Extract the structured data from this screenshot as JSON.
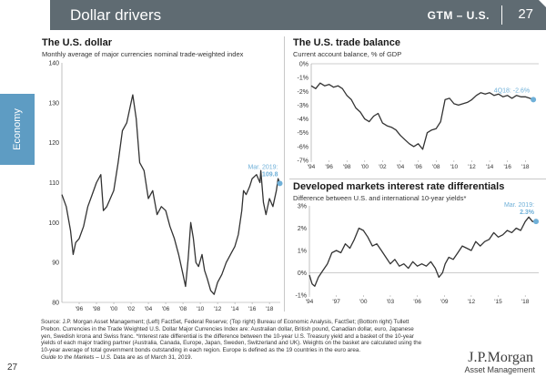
{
  "header": {
    "title": "Dollar drivers",
    "series": "GTM – U.S.",
    "page": "27"
  },
  "sidebar": {
    "tab": "Economy"
  },
  "charts": {
    "dollar": {
      "title": "The U.S. dollar",
      "subtitle": "Monthly average of major currencies nominal trade-weighted index",
      "callout_date": "Mar. 2019:",
      "callout_value": "109.8"
    },
    "trade": {
      "title": "The U.S. trade balance",
      "subtitle": "Current account balance, % of GDP",
      "callout": "4Q18: -2.6%"
    },
    "rates": {
      "title": "Developed markets interest rate differentials",
      "subtitle": "Difference between U.S. and international 10-year yields*",
      "callout_date": "Mar. 2019:",
      "callout_value": "2.3%"
    }
  },
  "source": {
    "text": "Source: J.P. Morgan Asset Management; (Left) FactSet, Federal Reserve; (Top right) Bureau of Economic Analysis, FactSet; (Bottom right) Tullett Prebon. Currencies in the Trade Weighted U.S. Dollar Major Currencies Index are: Australian dollar, British pound, Canadian dollar, euro, Japanese yen, Swedish krona and Swiss franc. *Interest rate differential is the difference between the 10-year U.S. Treasury yield and a basket of the 10-year yields of each major trading partner (Australia, Canada, Europe, Japan, Sweden, Switzerland and UK). Weights on the basket are calculated using the 10-year average of total government bonds outstanding in each region. Europe is defined as the 19 countries in the euro area.",
    "guide_label": "Guide to the Markets – U.S.",
    "guide_suffix": "Data are as of March 31, 2019."
  },
  "footer": {
    "page_number": "27",
    "logo": "J.P.Morgan",
    "logo_sub": "Asset Management"
  },
  "colors": {
    "header_bg": "#5f6b72",
    "sidetab": "#5e9cc3",
    "line": "#333333",
    "accent": "#6fb0d8"
  },
  "chart_data": [
    {
      "type": "line",
      "title": "The U.S. dollar",
      "subtitle": "Monthly average of major currencies nominal trade-weighted index",
      "ylim": [
        80,
        140
      ],
      "yticks": [
        80,
        90,
        100,
        110,
        120,
        130,
        140
      ],
      "xlim": [
        1994.0,
        2019.25
      ],
      "xtick_labels": [
        "'96",
        "'98",
        "'00",
        "'02",
        "'04",
        "'06",
        "'08",
        "'10",
        "'12",
        "'14",
        "'16",
        "'18"
      ],
      "xtick_values": [
        1996,
        1998,
        2000,
        2002,
        2004,
        2006,
        2008,
        2010,
        2012,
        2014,
        2016,
        2018
      ],
      "x": [
        1994.0,
        1994.5,
        1995.0,
        1995.3,
        1995.6,
        1996.0,
        1996.5,
        1997.0,
        1997.5,
        1998.0,
        1998.5,
        1998.8,
        1999.2,
        1999.6,
        2000.0,
        2000.5,
        2001.0,
        2001.5,
        2002.0,
        2002.2,
        2002.6,
        2003.0,
        2003.5,
        2004.0,
        2004.5,
        2005.0,
        2005.5,
        2006.0,
        2006.5,
        2007.0,
        2007.5,
        2008.0,
        2008.3,
        2008.6,
        2008.9,
        2009.2,
        2009.5,
        2009.8,
        2010.2,
        2010.5,
        2010.8,
        2011.2,
        2011.6,
        2012.0,
        2012.5,
        2013.0,
        2013.5,
        2014.0,
        2014.4,
        2014.8,
        2015.0,
        2015.3,
        2015.7,
        2016.0,
        2016.5,
        2016.9,
        2017.0,
        2017.3,
        2017.6,
        2018.0,
        2018.4,
        2018.8,
        2019.0,
        2019.2
      ],
      "y": [
        107,
        104,
        98,
        92,
        95,
        96,
        99,
        104,
        107,
        110,
        112,
        103,
        104,
        106,
        108,
        115,
        123,
        125,
        130,
        132,
        126,
        115,
        113,
        106,
        108,
        102,
        104,
        103,
        99,
        96,
        92,
        87,
        84,
        91,
        100,
        96,
        90,
        89,
        92,
        88,
        86,
        83,
        82,
        85,
        87,
        90,
        92,
        94,
        97,
        103,
        108,
        107,
        109,
        111,
        112,
        110,
        113,
        105,
        102,
        106,
        104,
        108,
        111,
        109.8
      ],
      "callout": {
        "label": "Mar. 2019:",
        "value": "109.8",
        "x": 2019.2,
        "y": 109.8
      }
    },
    {
      "type": "line",
      "title": "The U.S. trade balance",
      "subtitle": "Current account balance, % of GDP",
      "ylim": [
        0,
        -7
      ],
      "yticks": [
        0,
        -1,
        -2,
        -3,
        -4,
        -5,
        -6,
        -7
      ],
      "ytick_labels": [
        "0%",
        "-1%",
        "-2%",
        "-3%",
        "-4%",
        "-5%",
        "-6%",
        "-7%"
      ],
      "inverted": true,
      "xlim": [
        1994.0,
        2019.5
      ],
      "xtick_labels": [
        "'94",
        "'96",
        "'98",
        "'00",
        "'02",
        "'04",
        "'06",
        "'08",
        "'10",
        "'12",
        "'14",
        "'16",
        "'18"
      ],
      "xtick_values": [
        1994,
        1996,
        1998,
        2000,
        2002,
        2004,
        2006,
        2008,
        2010,
        2012,
        2014,
        2016,
        2018
      ],
      "x": [
        1994.0,
        1994.5,
        1995.0,
        1995.5,
        1996.0,
        1996.5,
        1997.0,
        1997.5,
        1998.0,
        1998.5,
        1999.0,
        1999.5,
        2000.0,
        2000.5,
        2001.0,
        2001.5,
        2002.0,
        2002.5,
        2003.0,
        2003.5,
        2004.0,
        2004.5,
        2005.0,
        2005.5,
        2006.0,
        2006.5,
        2007.0,
        2007.5,
        2008.0,
        2008.5,
        2009.0,
        2009.5,
        2010.0,
        2010.5,
        2011.0,
        2011.5,
        2012.0,
        2012.5,
        2013.0,
        2013.5,
        2014.0,
        2014.5,
        2015.0,
        2015.5,
        2016.0,
        2016.5,
        2017.0,
        2017.5,
        2018.0,
        2018.5,
        2018.9
      ],
      "y": [
        -1.6,
        -1.8,
        -1.4,
        -1.6,
        -1.5,
        -1.7,
        -1.6,
        -1.8,
        -2.3,
        -2.6,
        -3.2,
        -3.5,
        -4.0,
        -4.2,
        -3.8,
        -3.6,
        -4.3,
        -4.5,
        -4.6,
        -4.8,
        -5.2,
        -5.5,
        -5.8,
        -6.0,
        -5.8,
        -6.2,
        -5.0,
        -4.8,
        -4.7,
        -4.2,
        -2.6,
        -2.5,
        -2.9,
        -3.0,
        -2.9,
        -2.8,
        -2.6,
        -2.3,
        -2.1,
        -2.2,
        -2.1,
        -2.3,
        -2.2,
        -2.4,
        -2.3,
        -2.5,
        -2.3,
        -2.4,
        -2.4,
        -2.5,
        -2.6
      ],
      "callout": {
        "label": "4Q18: -2.6%",
        "x": 2018.9,
        "y": -2.6
      }
    },
    {
      "type": "line",
      "title": "Developed markets interest rate differentials",
      "subtitle": "Difference between U.S. and international 10-year yields*",
      "ylim": [
        -1,
        3
      ],
      "yticks": [
        -1,
        0,
        1,
        2,
        3
      ],
      "ytick_labels": [
        "-1%",
        "0%",
        "1%",
        "2%",
        "3%"
      ],
      "xlim": [
        1994.0,
        2019.5
      ],
      "xtick_labels": [
        "'94",
        "'97",
        "'00",
        "'03",
        "'06",
        "'09",
        "'12",
        "'15",
        "'18"
      ],
      "xtick_values": [
        1994,
        1997,
        2000,
        2003,
        2006,
        2009,
        2012,
        2015,
        2018
      ],
      "x": [
        1994.0,
        1994.3,
        1994.6,
        1995.0,
        1995.5,
        1996.0,
        1996.5,
        1997.0,
        1997.5,
        1998.0,
        1998.5,
        1999.0,
        1999.5,
        2000.0,
        2000.5,
        2001.0,
        2001.5,
        2002.0,
        2002.5,
        2003.0,
        2003.5,
        2004.0,
        2004.5,
        2005.0,
        2005.5,
        2006.0,
        2006.5,
        2007.0,
        2007.5,
        2008.0,
        2008.4,
        2008.8,
        2009.1,
        2009.5,
        2010.0,
        2010.5,
        2011.0,
        2011.5,
        2012.0,
        2012.5,
        2013.0,
        2013.5,
        2014.0,
        2014.5,
        2015.0,
        2015.5,
        2016.0,
        2016.5,
        2017.0,
        2017.5,
        2018.0,
        2018.4,
        2018.8,
        2019.2
      ],
      "y": [
        -0.1,
        -0.5,
        -0.6,
        -0.2,
        0.1,
        0.4,
        0.9,
        1.0,
        0.9,
        1.3,
        1.1,
        1.5,
        2.0,
        1.9,
        1.6,
        1.2,
        1.3,
        1.0,
        0.7,
        0.4,
        0.6,
        0.3,
        0.4,
        0.2,
        0.5,
        0.3,
        0.4,
        0.3,
        0.5,
        0.2,
        -0.2,
        0.0,
        0.4,
        0.7,
        0.6,
        0.9,
        1.2,
        1.1,
        1.0,
        1.4,
        1.2,
        1.4,
        1.5,
        1.8,
        1.6,
        1.7,
        1.9,
        1.8,
        2.0,
        1.9,
        2.3,
        2.5,
        2.3,
        2.3
      ],
      "callout": {
        "label": "Mar. 2019:",
        "value": "2.3%",
        "x": 2019.2,
        "y": 2.3
      }
    }
  ]
}
